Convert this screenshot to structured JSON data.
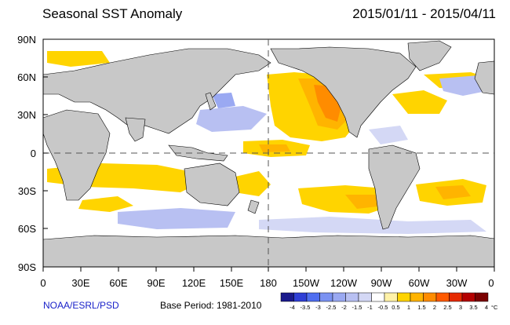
{
  "header": {
    "title": "Seasonal SST Anomaly",
    "date_range": "2015/01/11 - 2015/04/11"
  },
  "footer": {
    "credit": "NOAA/ESRL/PSD",
    "base_period": "Base Period: 1981-2010"
  },
  "axes": {
    "lat_labels": [
      "90N",
      "60N",
      "30N",
      "0",
      "30S",
      "60S",
      "90S"
    ],
    "lon_labels": [
      "0",
      "30E",
      "60E",
      "90E",
      "120E",
      "150E",
      "180",
      "150W",
      "120W",
      "90W",
      "60W",
      "30W",
      "0"
    ]
  },
  "colorbar": {
    "unit": "°C",
    "labels": [
      "-4",
      "-3.5",
      "-3",
      "-2.5",
      "-2",
      "-1.5",
      "-1",
      "-0.5",
      "0.5",
      "1",
      "1.5",
      "2",
      "2.5",
      "3",
      "3.5",
      "4"
    ],
    "colors": [
      "#1a1a8c",
      "#2f3fd6",
      "#4f6ef0",
      "#7b92f2",
      "#9aa9f2",
      "#b8c0f2",
      "#d4d8f5",
      "#ffffff",
      "#fff2a8",
      "#ffd400",
      "#ffb400",
      "#ff8c00",
      "#ff5a00",
      "#e62a00",
      "#b40000",
      "#7a0000"
    ]
  },
  "colors": {
    "land": "#c8c8c8",
    "ocean": "#ffffff"
  }
}
